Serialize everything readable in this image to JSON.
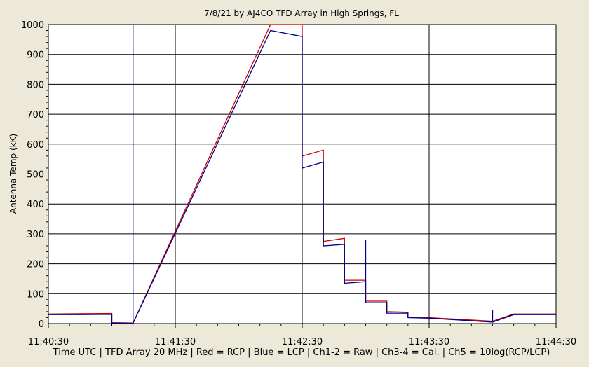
{
  "chart_data": {
    "type": "line",
    "title": "7/8/21  by  AJ4CO TFD Array  in  High Springs, FL",
    "xlabel": "Time UTC  |  TFD Array 20 MHz  |  Red = RCP  |  Blue = LCP  |  Ch1-2 = Raw  |  Ch3-4 = Cal.  |  Ch5 = 10log(RCP/LCP)",
    "ylabel": "Antenna Temp (kK)",
    "ylim": [
      0,
      1000
    ],
    "y_ticks": [
      0,
      100,
      200,
      300,
      400,
      500,
      600,
      700,
      800,
      900,
      1000
    ],
    "x_ticks": [
      "11:40:30",
      "11:41:30",
      "11:42:30",
      "11:43:30",
      "11:44:30"
    ],
    "x_range": [
      "11:40:30",
      "11:44:30"
    ],
    "grid": true,
    "series": [
      {
        "name": "RCP",
        "color": "#cc0000",
        "points": [
          [
            "11:40:30",
            32
          ],
          [
            "11:40:45",
            33
          ],
          [
            "11:41:00",
            34
          ],
          [
            "11:41:00",
            3
          ],
          [
            "11:41:10",
            2
          ],
          [
            "11:42:15",
            1000
          ],
          [
            "11:42:30",
            1000
          ],
          [
            "11:42:30",
            560
          ],
          [
            "11:42:40",
            580
          ],
          [
            "11:42:40",
            275
          ],
          [
            "11:42:50",
            285
          ],
          [
            "11:42:50",
            145
          ],
          [
            "11:43:00",
            145
          ],
          [
            "11:43:00",
            75
          ],
          [
            "11:43:10",
            75
          ],
          [
            "11:43:10",
            40
          ],
          [
            "11:43:20",
            38
          ],
          [
            "11:43:20",
            22
          ],
          [
            "11:43:30",
            20
          ],
          [
            "11:44:00",
            8
          ],
          [
            "11:44:10",
            32
          ],
          [
            "11:44:30",
            32
          ]
        ]
      },
      {
        "name": "LCP",
        "color": "#00008b",
        "points": [
          [
            "11:40:30",
            30
          ],
          [
            "11:40:45",
            30
          ],
          [
            "11:41:00",
            31
          ],
          [
            "11:41:00",
            2
          ],
          [
            "11:41:10",
            1
          ],
          [
            "11:41:10",
            1000
          ],
          [
            "11:41:10",
            1
          ],
          [
            "11:42:15",
            980
          ],
          [
            "11:42:30",
            960
          ],
          [
            "11:42:30",
            520
          ],
          [
            "11:42:40",
            540
          ],
          [
            "11:42:40",
            260
          ],
          [
            "11:42:50",
            265
          ],
          [
            "11:42:50",
            135
          ],
          [
            "11:43:00",
            140
          ],
          [
            "11:43:00",
            280
          ],
          [
            "11:43:00",
            70
          ],
          [
            "11:43:10",
            70
          ],
          [
            "11:43:10",
            35
          ],
          [
            "11:43:20",
            35
          ],
          [
            "11:43:20",
            20
          ],
          [
            "11:43:30",
            18
          ],
          [
            "11:44:00",
            5
          ],
          [
            "11:44:00",
            45
          ],
          [
            "11:44:00",
            5
          ],
          [
            "11:44:10",
            30
          ],
          [
            "11:44:30",
            30
          ]
        ]
      }
    ]
  }
}
